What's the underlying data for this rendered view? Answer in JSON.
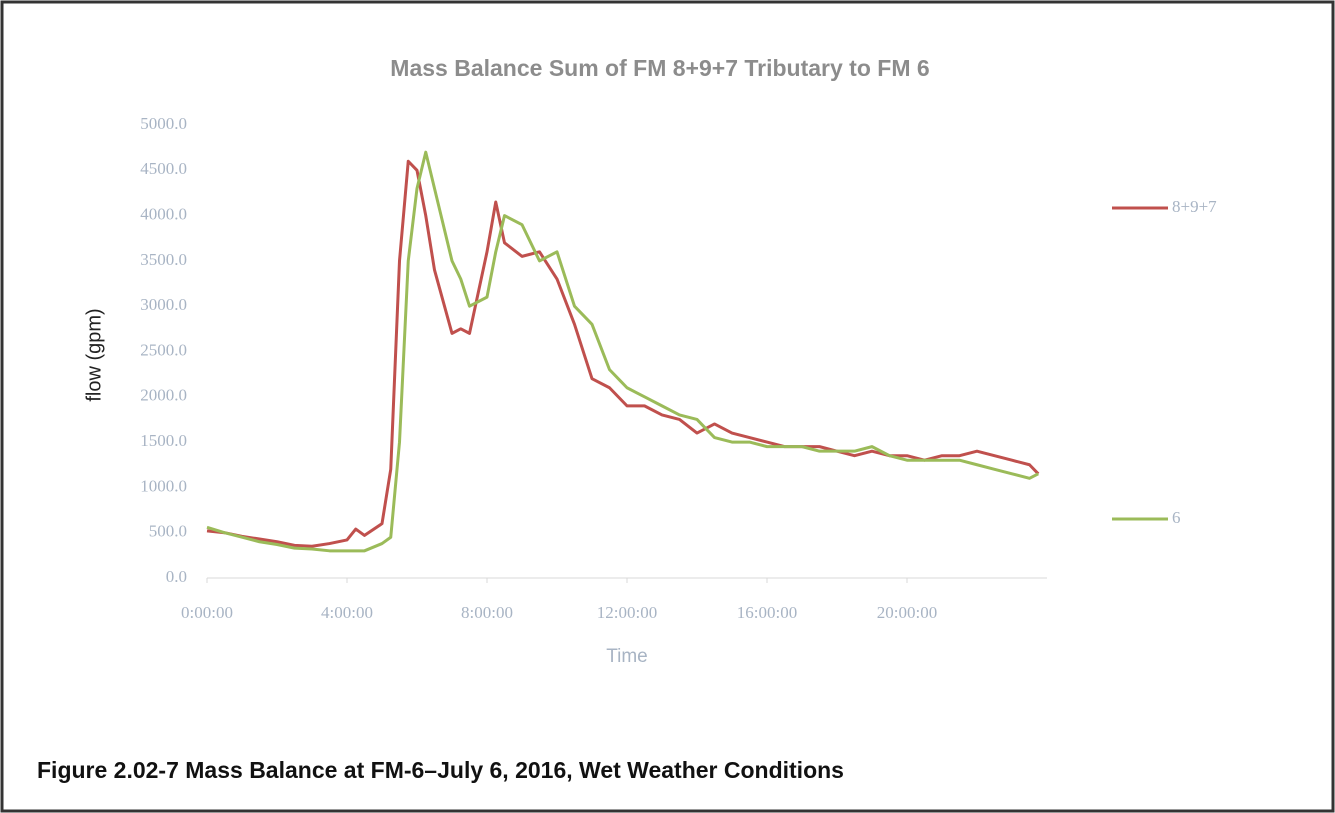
{
  "chart_data": {
    "type": "line",
    "title": "Mass Balance Sum of FM 8+9+7 Tributary to FM 6",
    "x_label": "Time",
    "y_label": "flow (gpm)",
    "caption": "Figure 2.02-7 Mass Balance at FM-6–July 6, 2016, Wet Weather Conditions",
    "x": [
      0,
      0.5,
      1,
      1.5,
      2,
      2.5,
      3,
      3.5,
      4,
      4.25,
      4.5,
      5,
      5.25,
      5.5,
      5.75,
      6,
      6.25,
      6.5,
      7,
      7.25,
      7.5,
      8,
      8.25,
      8.5,
      9,
      9.5,
      10,
      10.5,
      11,
      11.5,
      12,
      12.5,
      13,
      13.5,
      14,
      14.5,
      15,
      15.5,
      16,
      16.5,
      17,
      17.5,
      18,
      18.5,
      19,
      19.5,
      20,
      20.5,
      21,
      21.5,
      22,
      22.5,
      23,
      23.5,
      23.75
    ],
    "series": [
      {
        "name": "8+9+7",
        "color": "#c0504d",
        "values": [
          520,
          500,
          460,
          430,
          400,
          360,
          350,
          380,
          420,
          540,
          470,
          600,
          1200,
          3500,
          4600,
          4500,
          4000,
          3400,
          2700,
          2750,
          2700,
          3600,
          4150,
          3700,
          3550,
          3600,
          3300,
          2800,
          2200,
          2100,
          1900,
          1900,
          1800,
          1750,
          1600,
          1700,
          1600,
          1550,
          1500,
          1450,
          1450,
          1450,
          1400,
          1350,
          1400,
          1350,
          1350,
          1300,
          1350,
          1350,
          1400,
          1350,
          1300,
          1250,
          1150
        ]
      },
      {
        "name": "6",
        "color": "#9bbb59",
        "values": [
          560,
          500,
          450,
          400,
          370,
          330,
          320,
          300,
          300,
          300,
          300,
          380,
          450,
          1500,
          3500,
          4300,
          4700,
          4300,
          3500,
          3300,
          3000,
          3100,
          3600,
          4000,
          3900,
          3500,
          3600,
          3000,
          2800,
          2300,
          2100,
          2000,
          1900,
          1800,
          1750,
          1550,
          1500,
          1500,
          1450,
          1450,
          1450,
          1400,
          1400,
          1400,
          1450,
          1350,
          1300,
          1300,
          1300,
          1300,
          1250,
          1200,
          1150,
          1100,
          1150
        ]
      }
    ],
    "xlim": [
      0,
      24
    ],
    "xticks": [
      {
        "value": 0,
        "label": "0:00:00"
      },
      {
        "value": 4,
        "label": "4:00:00"
      },
      {
        "value": 8,
        "label": "8:00:00"
      },
      {
        "value": 12,
        "label": "12:00:00"
      },
      {
        "value": 16,
        "label": "16:00:00"
      },
      {
        "value": 20,
        "label": "20:00:00"
      }
    ],
    "ylim": [
      0,
      5000
    ],
    "yticks": [
      {
        "value": 0,
        "label": "0.0"
      },
      {
        "value": 500,
        "label": "500.0"
      },
      {
        "value": 1000,
        "label": "1000.0"
      },
      {
        "value": 1500,
        "label": "1500.0"
      },
      {
        "value": 2000,
        "label": "2000.0"
      },
      {
        "value": 2500,
        "label": "2500.0"
      },
      {
        "value": 3000,
        "label": "3000.0"
      },
      {
        "value": 3500,
        "label": "3500.0"
      },
      {
        "value": 4000,
        "label": "4000.0"
      },
      {
        "value": 4500,
        "label": "4500.0"
      },
      {
        "value": 5000,
        "label": "5000.0"
      }
    ],
    "grid": false,
    "legend": "right"
  }
}
